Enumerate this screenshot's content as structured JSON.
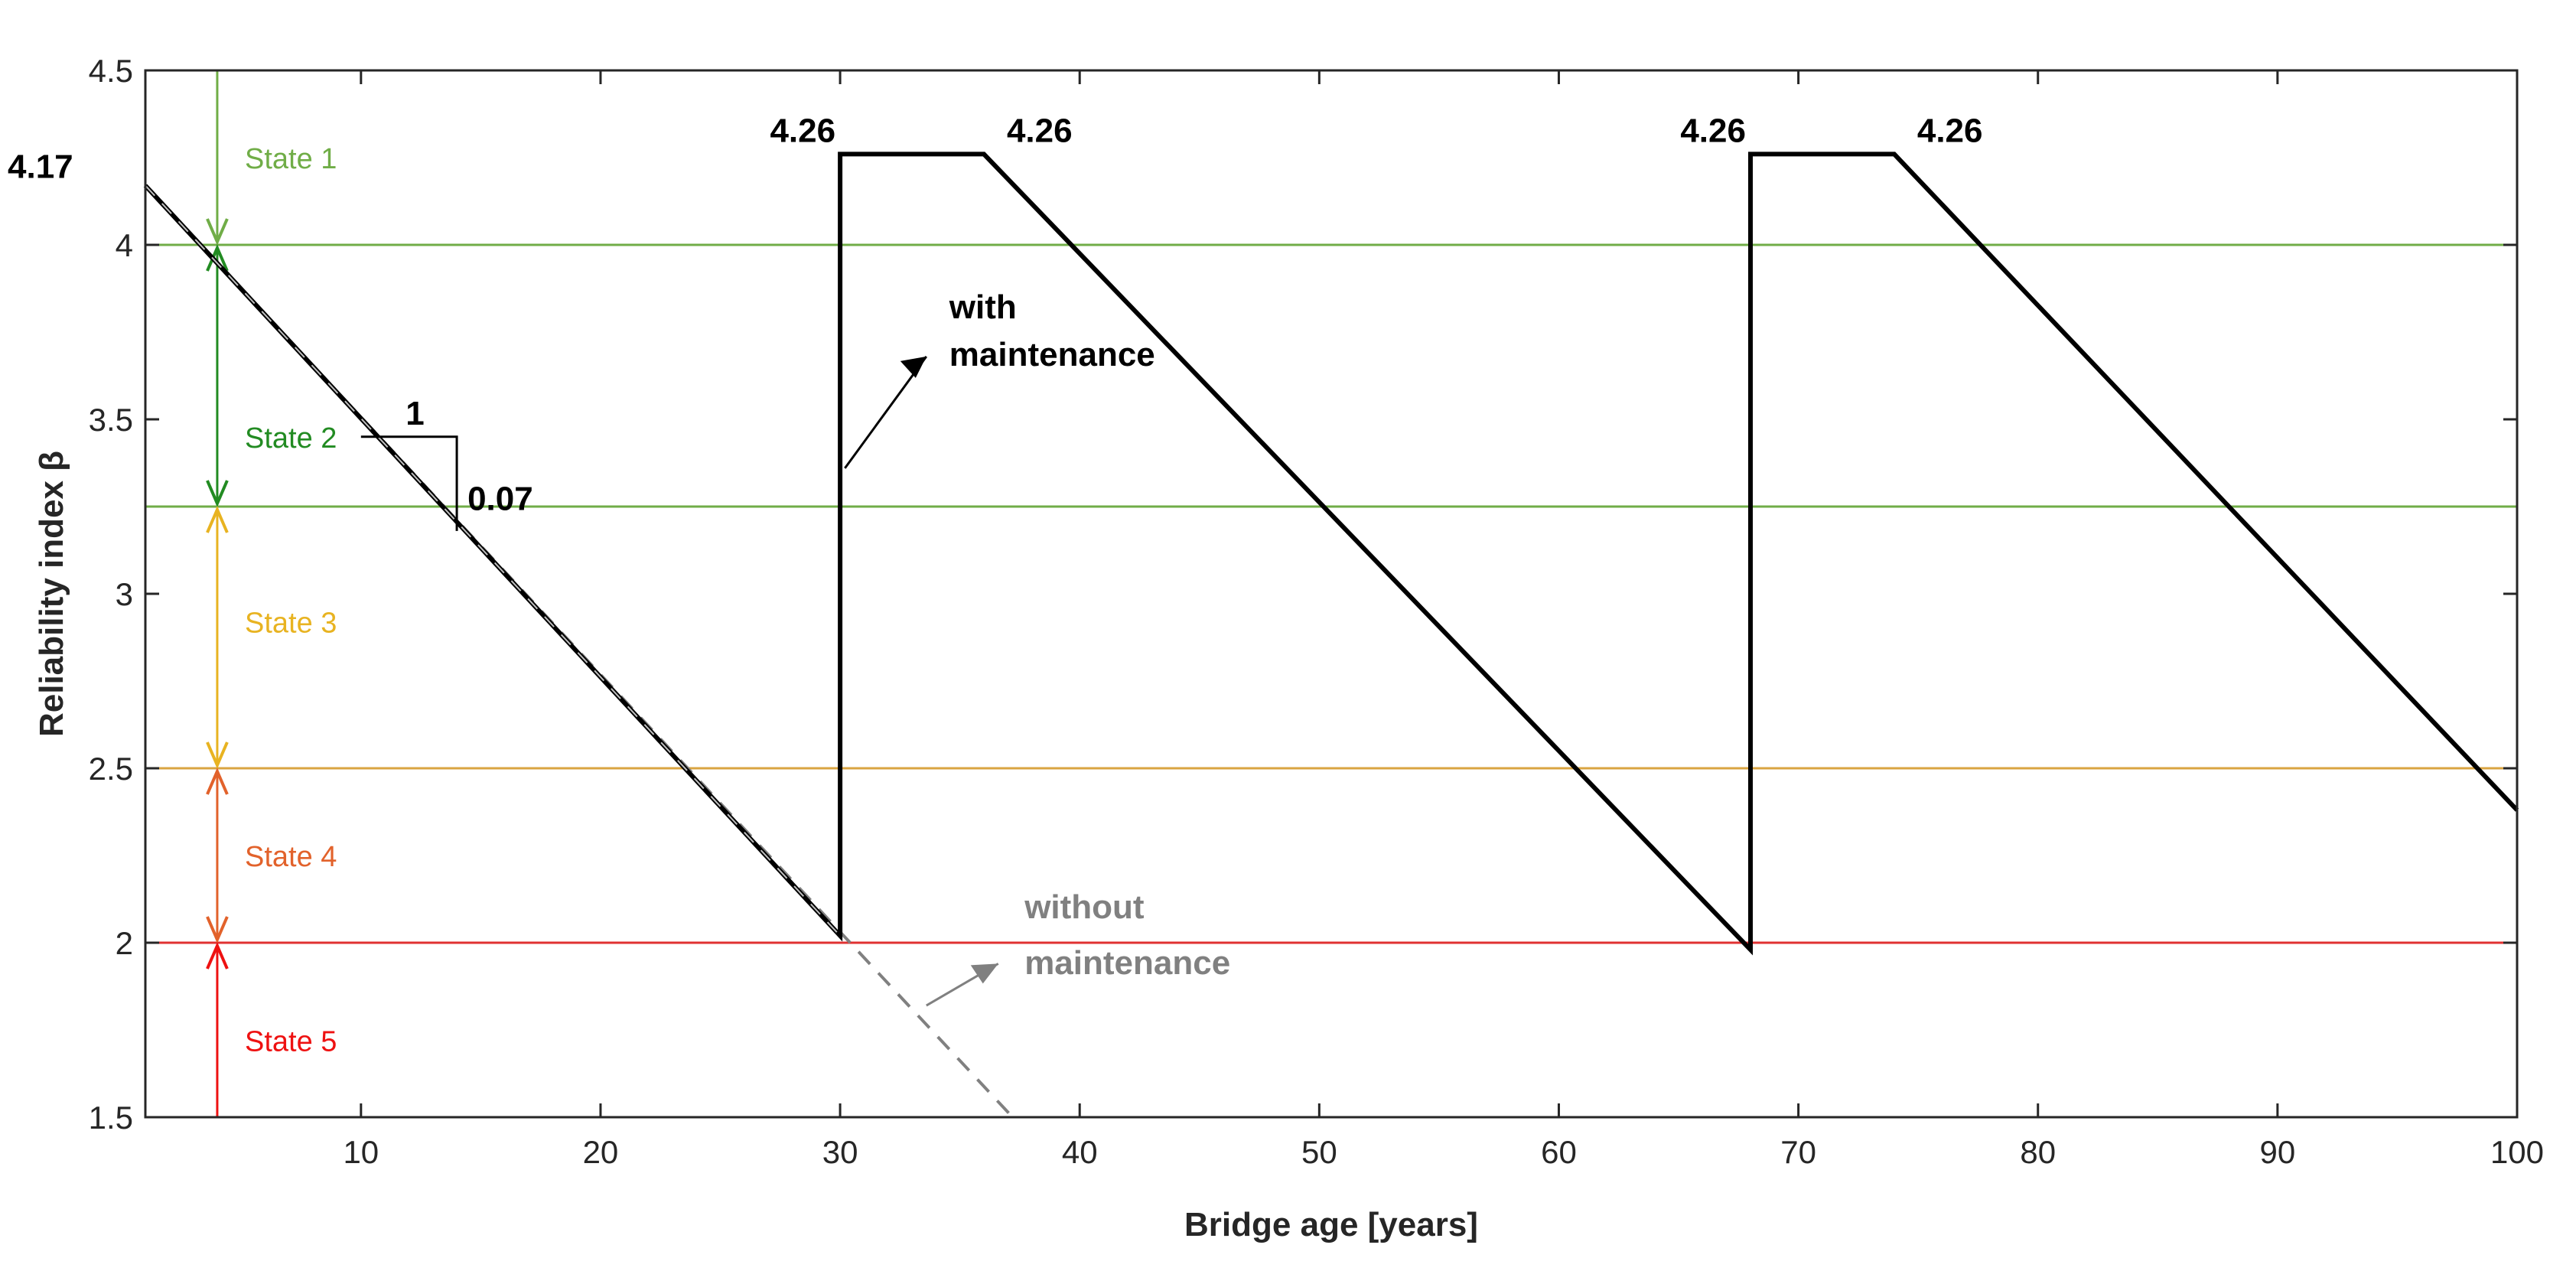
{
  "chart_data": {
    "type": "line",
    "title": "",
    "xlabel": "Bridge age [years]",
    "ylabel": "Reliability index β",
    "xlim": [
      1,
      100
    ],
    "ylim": [
      1.5,
      4.5
    ],
    "xticks": [
      10,
      20,
      30,
      40,
      50,
      60,
      70,
      80,
      90,
      100
    ],
    "yticks": [
      1.5,
      2,
      2.5,
      3,
      3.5,
      4,
      4.5
    ],
    "xtick_labels": [
      "10",
      "20",
      "30",
      "40",
      "50",
      "60",
      "70",
      "80",
      "90",
      "100"
    ],
    "ytick_labels": [
      "1.5",
      "2",
      "2.5",
      "3",
      "3.5",
      "4",
      "4.5"
    ],
    "series": [
      {
        "name": "with maintenance",
        "color": "#000000",
        "style": "solid",
        "x": [
          1,
          30,
          30,
          36,
          68,
          68,
          74,
          100
        ],
        "y": [
          4.17,
          2.02,
          4.26,
          4.26,
          1.98,
          4.26,
          4.26,
          2.38
        ]
      },
      {
        "name": "without maintenance",
        "color": "#808080",
        "style": "dashed",
        "x": [
          1,
          37.2
        ],
        "y": [
          4.17,
          1.5
        ]
      }
    ],
    "thresholds": [
      {
        "y": 4.0,
        "color": "#70AD47"
      },
      {
        "y": 3.25,
        "color": "#70AD47"
      },
      {
        "y": 2.5,
        "color": "#D9A441"
      },
      {
        "y": 2.0,
        "color": "#E03131"
      }
    ],
    "states": [
      {
        "label": "State 1",
        "y_from": 4.0,
        "y_to": 4.5,
        "label_y": 4.25,
        "color": "#70AD47"
      },
      {
        "label": "State 2",
        "y_from": 3.25,
        "y_to": 4.0,
        "label_y": 3.45,
        "color": "#228B22"
      },
      {
        "label": "State 3",
        "y_from": 2.5,
        "y_to": 3.25,
        "label_y": 2.92,
        "color": "#E8B321"
      },
      {
        "label": "State 4",
        "y_from": 2.0,
        "y_to": 2.5,
        "label_y": 2.25,
        "color": "#E2622B"
      },
      {
        "label": "State 5",
        "y_from": 1.5,
        "y_to": 2.0,
        "label_y": 1.72,
        "color": "#EE1111"
      }
    ],
    "state_marker_x": 4,
    "annotations": {
      "start_value": {
        "text": "4.17",
        "x": 1,
        "y": 4.17
      },
      "peaks": [
        {
          "text": "4.26",
          "x": 30,
          "y": 4.26,
          "side": "left"
        },
        {
          "text": "4.26",
          "x": 36,
          "y": 4.26,
          "side": "right"
        },
        {
          "text": "4.26",
          "x": 68,
          "y": 4.26,
          "side": "left"
        },
        {
          "text": "4.26",
          "x": 74,
          "y": 4.26,
          "side": "right"
        }
      ],
      "slope": {
        "run_text": "1",
        "rise_text": "0.07"
      },
      "with_maintenance": {
        "line1": "with",
        "line2": "maintenance"
      },
      "without_maintenance": {
        "line1": "without",
        "line2": "maintenance"
      }
    }
  }
}
